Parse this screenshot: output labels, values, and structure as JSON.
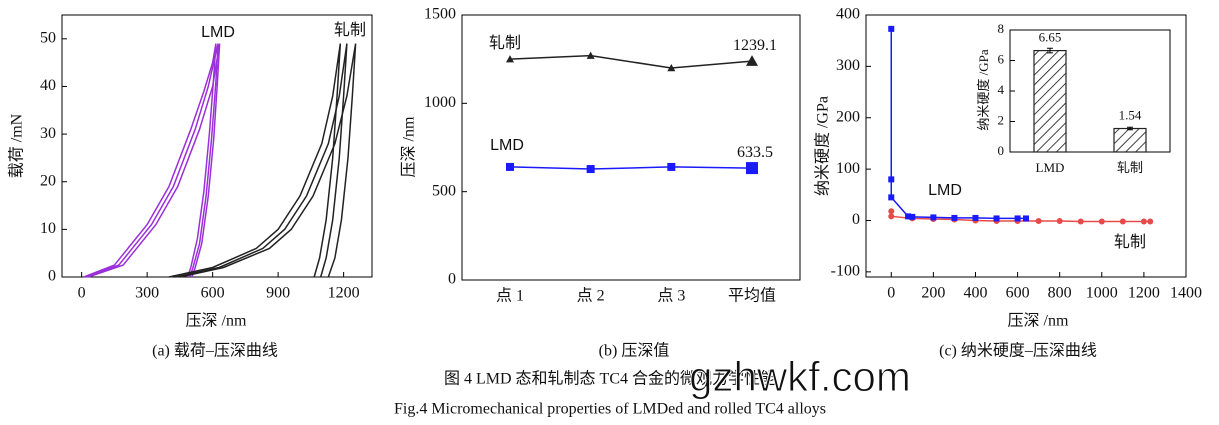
{
  "chart_data": [
    {
      "type": "line",
      "x_label": "压深 /nm",
      "y_label": "载荷 /mN",
      "caption": "(a) 载荷–压深曲线",
      "xlim": [
        -90,
        1330
      ],
      "ylim": [
        0,
        55
      ],
      "xticks": [
        0,
        300,
        600,
        900,
        1200
      ],
      "yticks": [
        0,
        10,
        20,
        30,
        40,
        50
      ],
      "annotations": [
        "LMD",
        "轧制"
      ],
      "series": [
        {
          "color": "#9b30d9",
          "x": [
            10,
            150,
            300,
            400,
            500,
            560,
            600,
            615,
            605,
            585,
            560,
            530,
            500,
            485
          ],
          "values": [
            0,
            2.5,
            11,
            19,
            31,
            39,
            45,
            49,
            42,
            30,
            18,
            8,
            2,
            0
          ]
        },
        {
          "color": "#9b30d9",
          "x": [
            20,
            170,
            320,
            420,
            520,
            580,
            625,
            615,
            595,
            570,
            540,
            510,
            495
          ],
          "values": [
            0,
            2.5,
            11,
            19,
            31,
            40,
            49,
            41,
            29,
            17,
            7,
            2,
            0
          ]
        },
        {
          "color": "#9b30d9",
          "x": [
            30,
            190,
            340,
            440,
            540,
            600,
            632,
            622,
            605,
            580,
            550,
            520,
            505
          ],
          "values": [
            0,
            2.5,
            11,
            19,
            31,
            40,
            49,
            41,
            29,
            17,
            7,
            2,
            0
          ]
        },
        {
          "color": "#222222",
          "x": [
            400,
            600,
            800,
            900,
            1000,
            1100,
            1150,
            1185,
            1170,
            1150,
            1120,
            1090,
            1065
          ],
          "values": [
            0,
            2,
            6,
            10,
            17,
            28,
            38,
            49,
            38,
            25,
            12,
            4,
            0
          ]
        },
        {
          "color": "#222222",
          "x": [
            430,
            630,
            830,
            930,
            1030,
            1130,
            1180,
            1215,
            1200,
            1180,
            1150,
            1120,
            1095
          ],
          "values": [
            0,
            2,
            6,
            10,
            17,
            28,
            38,
            49,
            38,
            25,
            12,
            4,
            0
          ]
        },
        {
          "color": "#222222",
          "x": [
            450,
            650,
            860,
            960,
            1060,
            1160,
            1215,
            1255,
            1240,
            1220,
            1190,
            1160,
            1130
          ],
          "values": [
            0,
            2,
            6,
            10,
            17,
            28,
            38,
            49,
            38,
            25,
            12,
            4,
            0
          ]
        }
      ]
    },
    {
      "type": "line",
      "y_label": "压深 /nm",
      "caption": "(b) 压深值",
      "categories": [
        "点 1",
        "点 2",
        "点 3",
        "平均值"
      ],
      "ylim": [
        0,
        1500
      ],
      "yticks": [
        0,
        500,
        1000,
        1500
      ],
      "series": [
        {
          "name": "轧制",
          "color": "#222222",
          "marker": "triangle",
          "values": [
            1250,
            1270,
            1200,
            1239.1
          ]
        },
        {
          "name": "LMD",
          "color": "#1a1aff",
          "marker": "square",
          "values": [
            640,
            628,
            640,
            633.5
          ]
        }
      ]
    },
    {
      "type": "line",
      "x_label": "压深 /nm",
      "y_label": "纳米硬度 /GPa",
      "caption": "(c) 纳米硬度–压深曲线",
      "xlim": [
        -120,
        1400
      ],
      "ylim": [
        -110,
        400
      ],
      "xticks": [
        0,
        200,
        400,
        600,
        800,
        1000,
        1200,
        1400
      ],
      "yticks": [
        -100,
        0,
        100,
        200,
        300,
        400
      ],
      "annotations": [
        "LMD",
        "轧制"
      ],
      "series": [
        {
          "color": "#e84a4a",
          "marker": "circle",
          "x": [
            0,
            0,
            100,
            200,
            300,
            400,
            500,
            600,
            700,
            800,
            900,
            1000,
            1100,
            1200,
            1230
          ],
          "values": [
            18,
            8,
            4,
            3,
            2,
            0,
            -1,
            -1,
            -1,
            -1,
            -2,
            -2,
            -2,
            -2,
            -2
          ]
        },
        {
          "color": "#1a1aff",
          "marker": "square",
          "x": [
            0,
            0,
            0,
            80,
            100,
            200,
            300,
            400,
            500,
            600,
            640
          ],
          "values": [
            373,
            80,
            45,
            8,
            7,
            6,
            5,
            5,
            4,
            4,
            4
          ]
        }
      ]
    },
    {
      "type": "bar",
      "y_label": "纳米硬度 /GPa",
      "categories": [
        "LMD",
        "轧制"
      ],
      "ylim": [
        0,
        8
      ],
      "yticks": [
        0,
        2,
        4,
        6,
        8
      ],
      "values": [
        6.65,
        1.54
      ],
      "errors": [
        0.15,
        0.08
      ],
      "color": "#222222"
    }
  ],
  "figure_caption": {
    "cn": "图 4  LMD 态和轧制态 TC4 合金的微观力学性能",
    "en": "Fig.4  Micromechanical properties of LMDed and rolled TC4 alloys"
  },
  "watermark": "gzhwkf.com"
}
